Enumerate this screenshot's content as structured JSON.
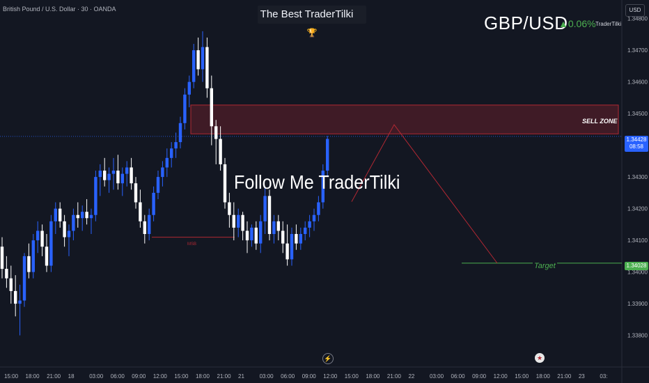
{
  "header": {
    "symbol": "British Pound / U.S. Dollar · 30 · OANDA",
    "banner": "The Best TraderTilki ",
    "pair": "GBP/USD",
    "change": "▲0.06%",
    "brand": "TraderTilki",
    "currency": "USD"
  },
  "annotations": {
    "follow": "Follow Me TraderTilki",
    "sell_zone": "SELL ZONE",
    "target": "Target",
    "msb": "MSB"
  },
  "price_tags": {
    "current": "1.34428",
    "countdown": "08:58",
    "target": "1.34028"
  },
  "icons": {
    "trophy": "trophy-icon",
    "flash": "flash-icon",
    "flag": "us-flag-icon"
  },
  "colors": {
    "background": "#131722",
    "up": "#2962ff",
    "down": "#ffffff",
    "zone": "#b22833",
    "target": "#4caf50"
  },
  "chart_data": {
    "type": "candlestick",
    "y_ticks": [
      "1.34800",
      "1.34700",
      "1.34600",
      "1.34500",
      "1.34300",
      "1.34200",
      "1.34100",
      "1.34000",
      "1.33900",
      "1.33800"
    ],
    "y_tick_values": [
      1.348,
      1.347,
      1.346,
      1.345,
      1.343,
      1.342,
      1.341,
      1.34,
      1.339,
      1.338
    ],
    "ylim": [
      1.3372,
      1.3483
    ],
    "x_ticks": [
      "15:00",
      "18:00",
      "21:00",
      "18",
      "03:00",
      "06:00",
      "09:00",
      "12:00",
      "15:00",
      "18:00",
      "21:00",
      "21",
      "03:00",
      "06:00",
      "09:00",
      "12:00",
      "15:00",
      "18:00",
      "21:00",
      "22",
      "03:00",
      "06:00",
      "09:00",
      "12:00",
      "15:00",
      "18:00",
      "21:00",
      "23",
      "03:"
    ],
    "sell_zone": {
      "top": 1.34527,
      "bottom": 1.34436
    },
    "current_price": 1.34428,
    "target_price": 1.34028,
    "msb_level": 1.3411,
    "projection": [
      1.34222,
      1.34465,
      1.34028
    ],
    "candles": [
      [
        1.3408,
        1.3411,
        1.3398,
        1.3401
      ],
      [
        1.3401,
        1.3405,
        1.3395,
        1.3398
      ],
      [
        1.3398,
        1.3402,
        1.339,
        1.3394
      ],
      [
        1.3394,
        1.3399,
        1.3386,
        1.339
      ],
      [
        1.339,
        1.3396,
        1.338,
        1.3391
      ],
      [
        1.3391,
        1.3406,
        1.3389,
        1.3405
      ],
      [
        1.3405,
        1.3409,
        1.3398,
        1.34
      ],
      [
        1.34,
        1.3412,
        1.3398,
        1.341
      ],
      [
        1.341,
        1.3416,
        1.3406,
        1.3413
      ],
      [
        1.3413,
        1.3415,
        1.3405,
        1.3408
      ],
      [
        1.3408,
        1.3412,
        1.34,
        1.3402
      ],
      [
        1.3402,
        1.3418,
        1.34,
        1.3416
      ],
      [
        1.3416,
        1.3422,
        1.3412,
        1.342
      ],
      [
        1.342,
        1.3422,
        1.3414,
        1.3416
      ],
      [
        1.3416,
        1.3418,
        1.3408,
        1.3411
      ],
      [
        1.3411,
        1.3415,
        1.3405,
        1.3413
      ],
      [
        1.3413,
        1.342,
        1.341,
        1.3418
      ],
      [
        1.3418,
        1.3422,
        1.3414,
        1.3417
      ],
      [
        1.3417,
        1.3421,
        1.3413,
        1.3419
      ],
      [
        1.3419,
        1.3423,
        1.3415,
        1.3417
      ],
      [
        1.3417,
        1.342,
        1.3412,
        1.3418
      ],
      [
        1.3418,
        1.3432,
        1.3416,
        1.343
      ],
      [
        1.343,
        1.3434,
        1.3424,
        1.3432
      ],
      [
        1.3432,
        1.3436,
        1.3427,
        1.3429
      ],
      [
        1.3429,
        1.3433,
        1.3425,
        1.3431
      ],
      [
        1.3431,
        1.3436,
        1.3426,
        1.3432
      ],
      [
        1.3432,
        1.3437,
        1.3426,
        1.3428
      ],
      [
        1.3428,
        1.3433,
        1.3424,
        1.3431
      ],
      [
        1.3431,
        1.3435,
        1.3427,
        1.3433
      ],
      [
        1.3433,
        1.3436,
        1.3426,
        1.3428
      ],
      [
        1.3428,
        1.343,
        1.342,
        1.3422
      ],
      [
        1.3422,
        1.3426,
        1.3414,
        1.3416
      ],
      [
        1.3416,
        1.3418,
        1.3409,
        1.3412
      ],
      [
        1.3412,
        1.342,
        1.341,
        1.3418
      ],
      [
        1.3418,
        1.3427,
        1.3416,
        1.3425
      ],
      [
        1.3425,
        1.3432,
        1.3423,
        1.343
      ],
      [
        1.343,
        1.3435,
        1.3427,
        1.3433
      ],
      [
        1.3433,
        1.3439,
        1.343,
        1.3436
      ],
      [
        1.3436,
        1.3441,
        1.3433,
        1.3439
      ],
      [
        1.3439,
        1.3444,
        1.3436,
        1.3441
      ],
      [
        1.3441,
        1.3449,
        1.3439,
        1.3447
      ],
      [
        1.3447,
        1.3458,
        1.3445,
        1.3456
      ],
      [
        1.3456,
        1.3462,
        1.3452,
        1.346
      ],
      [
        1.346,
        1.3472,
        1.3458,
        1.347
      ],
      [
        1.347,
        1.3474,
        1.3462,
        1.3464
      ],
      [
        1.3464,
        1.3476,
        1.346,
        1.3471
      ],
      [
        1.3471,
        1.3474,
        1.3455,
        1.3458
      ],
      [
        1.3458,
        1.3462,
        1.344,
        1.3446
      ],
      [
        1.3446,
        1.3448,
        1.3434,
        1.3442
      ],
      [
        1.3442,
        1.3446,
        1.3432,
        1.3434
      ],
      [
        1.3434,
        1.3436,
        1.342,
        1.3422
      ],
      [
        1.3422,
        1.3425,
        1.3414,
        1.3418
      ],
      [
        1.3418,
        1.3422,
        1.341,
        1.3414
      ],
      [
        1.3414,
        1.342,
        1.3411,
        1.3418
      ],
      [
        1.3418,
        1.3419,
        1.341,
        1.3413
      ],
      [
        1.3413,
        1.3416,
        1.3406,
        1.341
      ],
      [
        1.341,
        1.3415,
        1.3408,
        1.3414
      ],
      [
        1.3414,
        1.3416,
        1.3407,
        1.3409
      ],
      [
        1.3409,
        1.3418,
        1.3406,
        1.3416
      ],
      [
        1.3416,
        1.3427,
        1.3412,
        1.3424
      ],
      [
        1.3424,
        1.3426,
        1.341,
        1.3412
      ],
      [
        1.3412,
        1.3418,
        1.3409,
        1.3416
      ],
      [
        1.3416,
        1.3418,
        1.341,
        1.3413
      ],
      [
        1.3413,
        1.3416,
        1.3406,
        1.3409
      ],
      [
        1.3409,
        1.3415,
        1.3402,
        1.3404
      ],
      [
        1.3404,
        1.3414,
        1.3402,
        1.3412
      ],
      [
        1.3412,
        1.3415,
        1.3407,
        1.3409
      ],
      [
        1.3409,
        1.3414,
        1.3407,
        1.3412
      ],
      [
        1.3412,
        1.3416,
        1.341,
        1.3414
      ],
      [
        1.3414,
        1.3418,
        1.3411,
        1.3416
      ],
      [
        1.3416,
        1.342,
        1.3413,
        1.3418
      ],
      [
        1.3418,
        1.3424,
        1.3416,
        1.3422
      ],
      [
        1.3422,
        1.3434,
        1.342,
        1.3432
      ],
      [
        1.3432,
        1.3443,
        1.343,
        1.3442
      ]
    ]
  }
}
